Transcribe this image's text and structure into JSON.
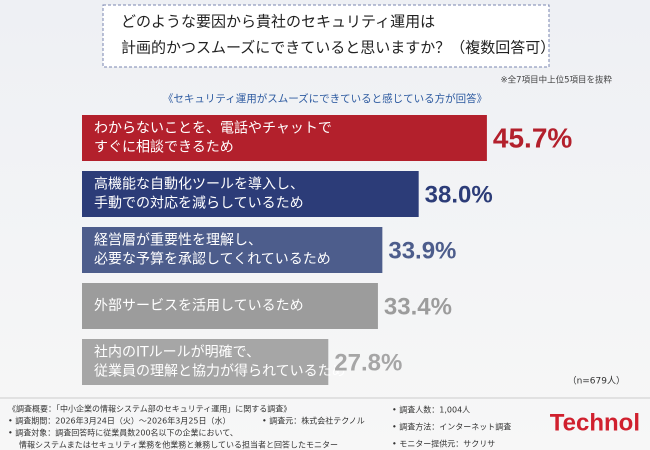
{
  "chart_data": {
    "type": "bar",
    "title": [
      "どのような要因から貴社のセキュリティ運用は",
      "計画的かつスムーズにできていると思いますか？（複数回答可）"
    ],
    "note": "※全7項目中上位5項目を抜粋",
    "subtitle": "《セキュリティ運用がスムーズにできていると感じている方が回答》",
    "categories": [
      [
        "わからないことを、電話やチャットで",
        "すぐに相談できるため"
      ],
      [
        "高機能な自動化ツールを導入し、",
        "手動での対応を減らしているため"
      ],
      [
        "経営層が重要性を理解し、",
        "必要な予算を承認してくれているため"
      ],
      [
        "外部サービスを活用しているため"
      ],
      [
        "社内のITルールが明確で、",
        "従業員の理解と協力が得られているため"
      ]
    ],
    "values": [
      45.7,
      38.0,
      33.9,
      33.4,
      27.8
    ],
    "value_labels": [
      "45.7%",
      "38.0%",
      "33.9%",
      "33.4%",
      "27.8%"
    ],
    "colors": [
      "#b3202c",
      "#2c3c78",
      "#4d5d8c",
      "#9c9c9c",
      "#a6a6a6"
    ],
    "sample": "（n=679人）"
  },
  "footer": {
    "heading": "《調査概要：「中小企業の情報システム部のセキュリティ運用」に関する調査》",
    "left": [
      "• 調査期間：2026年3月24日（火）～2026年3月25日（水）",
      "• 調査対象：調査回答時に従業員数200名以下の企業において、",
      "情報システムまたはセキュリティ業務を他業務と兼務している担当者と回答したモニター"
    ],
    "middle": "• 調査元：株式会社テクノル",
    "right": [
      "• 調査人数：1,004人",
      "• 調査方法：インターネット調査",
      "• モニター提供元：サクリサ"
    ],
    "logo": "Technol"
  }
}
